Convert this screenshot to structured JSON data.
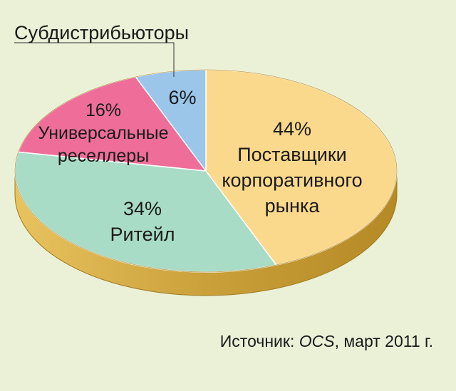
{
  "chart_data": {
    "type": "pie",
    "title": "",
    "slices": [
      {
        "pct_label": "44%",
        "value": 44,
        "label_lines": [
          "Поставщики",
          "корпоративного",
          "рынка"
        ],
        "color": "#fbd98c"
      },
      {
        "pct_label": "34%",
        "value": 34,
        "label_lines": [
          "Ритейл"
        ],
        "color": "#a9dcc6"
      },
      {
        "pct_label": "16%",
        "value": 16,
        "label_lines": [
          "Универсальные",
          "реселлеры"
        ],
        "color": "#ee6e99"
      },
      {
        "pct_label": "6%",
        "value": 6,
        "label_lines": [],
        "color": "#9bc6ea"
      }
    ],
    "callout": "Субдистрибьюторы",
    "rim_color": "#d4a83c"
  },
  "source": {
    "prefix": "Источник: ",
    "italic": "OCS",
    "suffix": ", март 2011 г."
  }
}
